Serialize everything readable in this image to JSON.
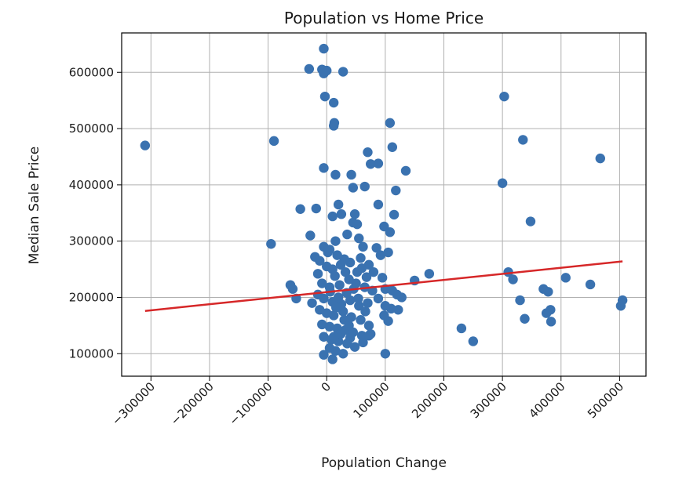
{
  "chart_data": {
    "type": "scatter",
    "title": "Population vs Home Price",
    "xlabel": "Population Change",
    "ylabel": "Median Sale Price",
    "xlim": [
      -350000,
      545000
    ],
    "ylim": [
      60000,
      670000
    ],
    "xticks": [
      -300000,
      -200000,
      -100000,
      0,
      100000,
      200000,
      300000,
      400000,
      500000
    ],
    "yticks": [
      100000,
      200000,
      300000,
      400000,
      500000,
      600000
    ],
    "grid": true,
    "colors": {
      "points": "#3a72b0",
      "trend": "#d62728",
      "grid": "#b0b0b0",
      "axes": "#000000"
    },
    "points": [
      [
        -310000,
        470000
      ],
      [
        -95000,
        295000
      ],
      [
        -90000,
        478000
      ],
      [
        -62000,
        222000
      ],
      [
        -58000,
        215000
      ],
      [
        -52000,
        198000
      ],
      [
        -45000,
        357000
      ],
      [
        -28000,
        310000
      ],
      [
        -25000,
        190000
      ],
      [
        -20000,
        272000
      ],
      [
        -18000,
        358000
      ],
      [
        -15000,
        242000
      ],
      [
        -30000,
        606000
      ],
      [
        -5000,
        598000
      ],
      [
        -8000,
        605000
      ],
      [
        -5000,
        642000
      ],
      [
        0,
        603000
      ],
      [
        -3000,
        557000
      ],
      [
        12000,
        546000
      ],
      [
        12000,
        505000
      ],
      [
        13000,
        510000
      ],
      [
        -5000,
        430000
      ],
      [
        15000,
        418000
      ],
      [
        28000,
        601000
      ],
      [
        42000,
        418000
      ],
      [
        45000,
        395000
      ],
      [
        65000,
        397000
      ],
      [
        70000,
        458000
      ],
      [
        75000,
        437000
      ],
      [
        88000,
        438000
      ],
      [
        108000,
        510000
      ],
      [
        112000,
        467000
      ],
      [
        88000,
        365000
      ],
      [
        118000,
        390000
      ],
      [
        135000,
        425000
      ],
      [
        10000,
        344000
      ],
      [
        20000,
        365000
      ],
      [
        25000,
        348000
      ],
      [
        48000,
        348000
      ],
      [
        45000,
        333000
      ],
      [
        52000,
        330000
      ],
      [
        98000,
        326000
      ],
      [
        108000,
        316000
      ],
      [
        115000,
        347000
      ],
      [
        -5000,
        290000
      ],
      [
        5000,
        285000
      ],
      [
        15000,
        300000
      ],
      [
        35000,
        312000
      ],
      [
        55000,
        305000
      ],
      [
        62000,
        290000
      ],
      [
        85000,
        288000
      ],
      [
        92000,
        275000
      ],
      [
        105000,
        280000
      ],
      [
        -12000,
        265000
      ],
      [
        0,
        255000
      ],
      [
        10000,
        250000
      ],
      [
        30000,
        268000
      ],
      [
        40000,
        262000
      ],
      [
        58000,
        270000
      ],
      [
        72000,
        258000
      ],
      [
        80000,
        245000
      ],
      [
        95000,
        235000
      ],
      [
        -8000,
        225000
      ],
      [
        5000,
        218000
      ],
      [
        22000,
        222000
      ],
      [
        38000,
        232000
      ],
      [
        50000,
        225000
      ],
      [
        65000,
        218000
      ],
      [
        78000,
        212000
      ],
      [
        100000,
        215000
      ],
      [
        112000,
        212000
      ],
      [
        120000,
        205000
      ],
      [
        128000,
        200000
      ],
      [
        150000,
        230000
      ],
      [
        175000,
        242000
      ],
      [
        -15000,
        205000
      ],
      [
        -5000,
        198000
      ],
      [
        10000,
        192000
      ],
      [
        25000,
        188000
      ],
      [
        40000,
        195000
      ],
      [
        55000,
        185000
      ],
      [
        70000,
        190000
      ],
      [
        88000,
        198000
      ],
      [
        100000,
        185000
      ],
      [
        110000,
        180000
      ],
      [
        122000,
        178000
      ],
      [
        -12000,
        178000
      ],
      [
        0,
        172000
      ],
      [
        12000,
        168000
      ],
      [
        28000,
        175000
      ],
      [
        42000,
        165000
      ],
      [
        58000,
        160000
      ],
      [
        72000,
        150000
      ],
      [
        98000,
        168000
      ],
      [
        105000,
        158000
      ],
      [
        -8000,
        152000
      ],
      [
        5000,
        148000
      ],
      [
        18000,
        145000
      ],
      [
        32000,
        142000
      ],
      [
        45000,
        138000
      ],
      [
        60000,
        132000
      ],
      [
        75000,
        135000
      ],
      [
        -5000,
        130000
      ],
      [
        8000,
        125000
      ],
      [
        20000,
        122000
      ],
      [
        35000,
        118000
      ],
      [
        48000,
        112000
      ],
      [
        62000,
        120000
      ],
      [
        72000,
        132000
      ],
      [
        5000,
        110000
      ],
      [
        15000,
        105000
      ],
      [
        28000,
        100000
      ],
      [
        -5000,
        98000
      ],
      [
        10000,
        90000
      ],
      [
        100000,
        100000
      ],
      [
        2000,
        280000
      ],
      [
        18000,
        275000
      ],
      [
        24000,
        258000
      ],
      [
        32000,
        245000
      ],
      [
        14000,
        238000
      ],
      [
        6000,
        210000
      ],
      [
        20000,
        200000
      ],
      [
        34000,
        208000
      ],
      [
        46000,
        215000
      ],
      [
        16000,
        182000
      ],
      [
        30000,
        160000
      ],
      [
        38000,
        150000
      ],
      [
        24000,
        135000
      ],
      [
        12000,
        130000
      ],
      [
        40000,
        128000
      ],
      [
        52000,
        245000
      ],
      [
        60000,
        252000
      ],
      [
        68000,
        236000
      ],
      [
        54000,
        198000
      ],
      [
        66000,
        175000
      ],
      [
        230000,
        145000
      ],
      [
        250000,
        122000
      ],
      [
        303000,
        557000
      ],
      [
        300000,
        403000
      ],
      [
        335000,
        480000
      ],
      [
        310000,
        245000
      ],
      [
        318000,
        232000
      ],
      [
        330000,
        195000
      ],
      [
        338000,
        162000
      ],
      [
        348000,
        335000
      ],
      [
        370000,
        215000
      ],
      [
        378000,
        210000
      ],
      [
        375000,
        172000
      ],
      [
        382000,
        178000
      ],
      [
        383000,
        157000
      ],
      [
        408000,
        235000
      ],
      [
        450000,
        223000
      ],
      [
        467000,
        447000
      ],
      [
        502000,
        185000
      ],
      [
        505000,
        195000
      ]
    ],
    "trend": {
      "x": [
        -310000,
        505000
      ],
      "y": [
        176000,
        264000
      ]
    }
  }
}
